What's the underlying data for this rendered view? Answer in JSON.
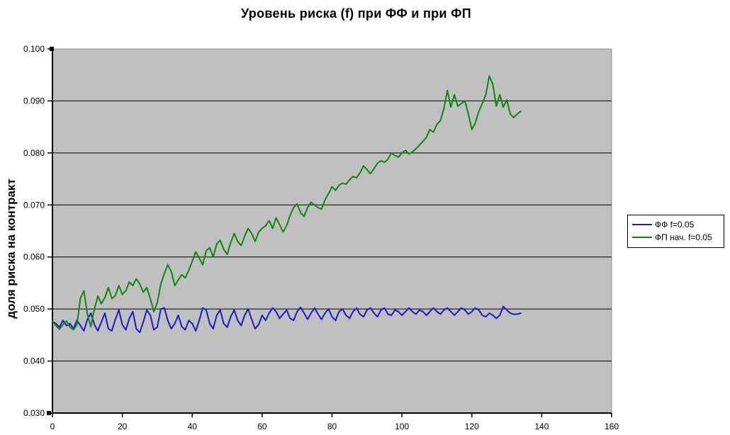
{
  "chart_data": {
    "type": "line",
    "title": "Уровень риска (f) при ФФ и при ФП",
    "ylabel": "доля риска на контракт",
    "xlabel": "",
    "xlim": [
      0,
      160
    ],
    "ylim": [
      0.03,
      0.1
    ],
    "x_tick_labels": [
      "0",
      "20",
      "40",
      "60",
      "80",
      "100",
      "120",
      "140",
      "160"
    ],
    "y_tick_labels": [
      "0.030",
      "0.040",
      "0.050",
      "0.060",
      "0.070",
      "0.080",
      "0.090",
      "0.100"
    ],
    "grid": true,
    "grid_color": "#000000",
    "plot_bg": "#C0C0C0",
    "plot_border_color": "#909090",
    "axis_color": "#000000",
    "legend_position": "right",
    "x_start": 0,
    "x_step": 1,
    "series": [
      {
        "name": "ФФ f=0.05",
        "color": "#1A1ACC",
        "values": [
          0.0476,
          0.0472,
          0.0465,
          0.0478,
          0.0468,
          0.0472,
          0.0462,
          0.0478,
          0.0468,
          0.0458,
          0.048,
          0.0492,
          0.047,
          0.0458,
          0.0475,
          0.0492,
          0.0462,
          0.0458,
          0.048,
          0.0498,
          0.047,
          0.046,
          0.0482,
          0.0495,
          0.0462,
          0.0455,
          0.0475,
          0.0498,
          0.0488,
          0.046,
          0.0465,
          0.05,
          0.0502,
          0.0478,
          0.0462,
          0.0472,
          0.0488,
          0.0466,
          0.046,
          0.0478,
          0.0472,
          0.0458,
          0.0478,
          0.0502,
          0.0498,
          0.0472,
          0.0462,
          0.0488,
          0.0498,
          0.0472,
          0.0465,
          0.0485,
          0.0498,
          0.0478,
          0.0468,
          0.0488,
          0.05,
          0.048,
          0.0462,
          0.047,
          0.0488,
          0.0478,
          0.0492,
          0.0502,
          0.0495,
          0.0482,
          0.049,
          0.0498,
          0.0482,
          0.0478,
          0.0495,
          0.0503,
          0.0492,
          0.048,
          0.0492,
          0.0502,
          0.049,
          0.048,
          0.0492,
          0.05,
          0.0485,
          0.0478,
          0.0495,
          0.05,
          0.0488,
          0.0482,
          0.0495,
          0.0502,
          0.049,
          0.0485,
          0.0498,
          0.0502,
          0.0492,
          0.0485,
          0.0498,
          0.0502,
          0.049,
          0.0488,
          0.0498,
          0.0495,
          0.0488,
          0.0495,
          0.0502,
          0.0495,
          0.049,
          0.0498,
          0.0495,
          0.0488,
          0.0495,
          0.0502,
          0.0495,
          0.049,
          0.0498,
          0.0502,
          0.0495,
          0.0488,
          0.0495,
          0.0502,
          0.0498,
          0.049,
          0.0495,
          0.0502,
          0.0498,
          0.0488,
          0.0485,
          0.0492,
          0.0488,
          0.0482,
          0.0488,
          0.0505,
          0.0498,
          0.0492,
          0.049,
          0.049,
          0.0492
        ]
      },
      {
        "name": "ФП нач. f=0.05",
        "color": "#0A8A0A",
        "values": [
          0.0476,
          0.0468,
          0.0461,
          0.047,
          0.0477,
          0.0465,
          0.046,
          0.047,
          0.0521,
          0.0535,
          0.049,
          0.0466,
          0.05,
          0.0525,
          0.051,
          0.0522,
          0.0541,
          0.052,
          0.0526,
          0.0545,
          0.0528,
          0.0535,
          0.0552,
          0.0545,
          0.0558,
          0.0548,
          0.0532,
          0.0541,
          0.052,
          0.0495,
          0.0512,
          0.0548,
          0.0568,
          0.0585,
          0.0572,
          0.0545,
          0.0556,
          0.0566,
          0.056,
          0.0574,
          0.0592,
          0.061,
          0.0598,
          0.0585,
          0.0612,
          0.0618,
          0.06,
          0.0625,
          0.0632,
          0.0615,
          0.0605,
          0.0628,
          0.0645,
          0.063,
          0.0622,
          0.064,
          0.0655,
          0.0645,
          0.063,
          0.0648,
          0.0655,
          0.066,
          0.067,
          0.0655,
          0.0675,
          0.0662,
          0.0648,
          0.066,
          0.068,
          0.0695,
          0.0702,
          0.0685,
          0.0678,
          0.0695,
          0.0705,
          0.07,
          0.0695,
          0.0692,
          0.071,
          0.0722,
          0.0735,
          0.0728,
          0.0738,
          0.0742,
          0.074,
          0.0748,
          0.0755,
          0.0752,
          0.0762,
          0.0775,
          0.0768,
          0.076,
          0.077,
          0.078,
          0.0785,
          0.0782,
          0.0788,
          0.08,
          0.0795,
          0.0792,
          0.08,
          0.0805,
          0.0798,
          0.0802,
          0.0808,
          0.0815,
          0.0822,
          0.083,
          0.0845,
          0.084,
          0.0855,
          0.0862,
          0.0885,
          0.092,
          0.0888,
          0.0912,
          0.089,
          0.0895,
          0.09,
          0.0875,
          0.0845,
          0.0858,
          0.088,
          0.0895,
          0.0912,
          0.0948,
          0.0932,
          0.089,
          0.0912,
          0.0888,
          0.0902,
          0.0875,
          0.0868,
          0.0875,
          0.088
        ]
      }
    ]
  }
}
